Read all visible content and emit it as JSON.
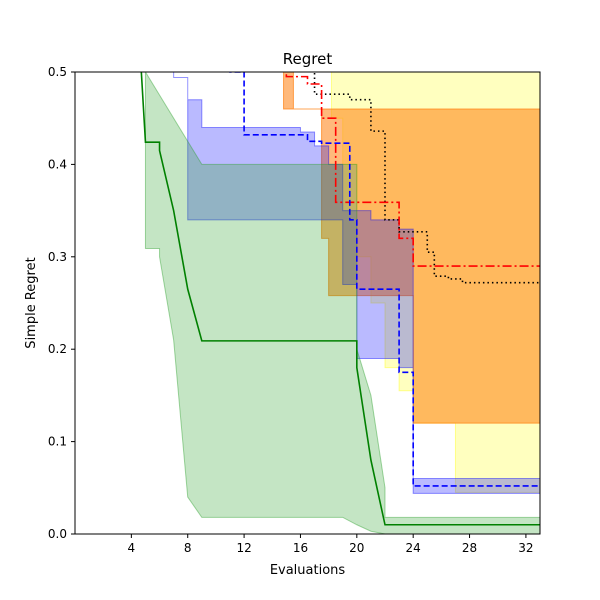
{
  "chart_data": {
    "type": "line",
    "title": "Regret",
    "xlabel": "Evaluations",
    "ylabel": "Simple Regret",
    "xlim": [
      0,
      33
    ],
    "ylim": [
      0,
      0.5
    ],
    "xticks": [
      4,
      8,
      12,
      16,
      20,
      24,
      28,
      32
    ],
    "yticks": [
      0.0,
      0.1,
      0.2,
      0.3,
      0.4,
      0.5
    ],
    "grid": false,
    "series": [
      {
        "color": "#000000",
        "dash": "dotted",
        "band_color": "#ffff00",
        "band_opacity": 0.25,
        "line": [
          [
            0,
            0.6
          ],
          [
            17,
            0.6
          ],
          [
            17,
            0.476
          ],
          [
            19.5,
            0.476
          ],
          [
            19.5,
            0.47
          ],
          [
            21,
            0.47
          ],
          [
            21,
            0.436
          ],
          [
            22,
            0.436
          ],
          [
            22,
            0.34
          ],
          [
            23,
            0.34
          ],
          [
            23,
            0.327
          ],
          [
            25,
            0.327
          ],
          [
            25,
            0.305
          ],
          [
            25.5,
            0.305
          ],
          [
            25.5,
            0.279
          ],
          [
            26.5,
            0.279
          ],
          [
            26.5,
            0.276
          ],
          [
            27.5,
            0.276
          ],
          [
            27.5,
            0.272
          ],
          [
            33,
            0.272
          ]
        ],
        "upper": [
          [
            0,
            0.6
          ],
          [
            33,
            0.6
          ]
        ],
        "lower": [
          [
            0,
            0.6
          ],
          [
            18.2,
            0.6
          ],
          [
            18.2,
            0.45
          ],
          [
            19,
            0.45
          ],
          [
            19,
            0.4
          ],
          [
            20,
            0.4
          ],
          [
            20,
            0.3
          ],
          [
            21,
            0.3
          ],
          [
            21,
            0.25
          ],
          [
            22,
            0.25
          ],
          [
            22,
            0.18
          ],
          [
            23,
            0.18
          ],
          [
            23,
            0.155
          ],
          [
            24,
            0.155
          ],
          [
            24,
            0.12
          ],
          [
            27,
            0.12
          ],
          [
            27,
            0.045
          ],
          [
            33,
            0.045
          ]
        ]
      },
      {
        "color": "#ff0000",
        "dash": "dashdot",
        "band_color": "#ff7f0e",
        "band_opacity": 0.55,
        "line": [
          [
            0,
            0.6
          ],
          [
            15,
            0.6
          ],
          [
            15,
            0.495
          ],
          [
            16.5,
            0.495
          ],
          [
            16.5,
            0.487
          ],
          [
            17.5,
            0.487
          ],
          [
            17.5,
            0.45
          ],
          [
            18.5,
            0.45
          ],
          [
            18.5,
            0.359
          ],
          [
            23,
            0.359
          ],
          [
            23,
            0.32
          ],
          [
            24,
            0.32
          ],
          [
            24,
            0.29
          ],
          [
            33,
            0.29
          ]
        ],
        "upper": [
          [
            0,
            0.6
          ],
          [
            14.8,
            0.6
          ],
          [
            14.8,
            0.46
          ],
          [
            33,
            0.46
          ]
        ],
        "lower": [
          [
            0,
            0.6
          ],
          [
            15.5,
            0.6
          ],
          [
            15.5,
            0.46
          ],
          [
            17.5,
            0.46
          ],
          [
            17.5,
            0.32
          ],
          [
            18,
            0.32
          ],
          [
            18,
            0.258
          ],
          [
            24,
            0.258
          ],
          [
            24,
            0.12
          ],
          [
            33,
            0.12
          ]
        ]
      },
      {
        "color": "#0000ff",
        "dash": "dashed",
        "band_color": "#0000ff",
        "band_opacity": 0.27,
        "line": [
          [
            0,
            0.6
          ],
          [
            11,
            0.6
          ],
          [
            11,
            0.5
          ],
          [
            12,
            0.5
          ],
          [
            12,
            0.432
          ],
          [
            16.5,
            0.432
          ],
          [
            16.5,
            0.425
          ],
          [
            17.5,
            0.425
          ],
          [
            17.5,
            0.423
          ],
          [
            19.5,
            0.423
          ],
          [
            19.5,
            0.34
          ],
          [
            20,
            0.34
          ],
          [
            20,
            0.265
          ],
          [
            23,
            0.265
          ],
          [
            23,
            0.175
          ],
          [
            24,
            0.175
          ],
          [
            24,
            0.052
          ],
          [
            33,
            0.052
          ]
        ],
        "upper": [
          [
            0,
            0.6
          ],
          [
            7,
            0.6
          ],
          [
            7,
            0.494
          ],
          [
            8,
            0.494
          ],
          [
            8,
            0.47
          ],
          [
            9,
            0.47
          ],
          [
            9,
            0.44
          ],
          [
            16,
            0.44
          ],
          [
            16,
            0.435
          ],
          [
            17,
            0.435
          ],
          [
            17,
            0.42
          ],
          [
            18,
            0.42
          ],
          [
            18,
            0.4
          ],
          [
            19,
            0.4
          ],
          [
            19,
            0.35
          ],
          [
            21,
            0.35
          ],
          [
            21,
            0.34
          ],
          [
            23,
            0.34
          ],
          [
            23,
            0.33
          ],
          [
            24,
            0.33
          ],
          [
            24,
            0.06
          ],
          [
            33,
            0.06
          ]
        ],
        "lower": [
          [
            0,
            0.6
          ],
          [
            7,
            0.6
          ],
          [
            7,
            0.494
          ],
          [
            8,
            0.494
          ],
          [
            8,
            0.34
          ],
          [
            19,
            0.34
          ],
          [
            19,
            0.27
          ],
          [
            20,
            0.27
          ],
          [
            20,
            0.19
          ],
          [
            23,
            0.19
          ],
          [
            23,
            0.18
          ],
          [
            24,
            0.18
          ],
          [
            24,
            0.044
          ],
          [
            33,
            0.044
          ]
        ]
      },
      {
        "color": "#008000",
        "dash": "solid",
        "band_color": "#2ca02c",
        "band_opacity": 0.28,
        "line": [
          [
            0,
            0.6
          ],
          [
            4.7,
            0.6
          ],
          [
            4.7,
            0.502
          ],
          [
            5,
            0.424
          ],
          [
            6,
            0.424
          ],
          [
            6,
            0.415
          ],
          [
            7,
            0.35
          ],
          [
            8,
            0.265
          ],
          [
            9,
            0.209
          ],
          [
            20,
            0.209
          ],
          [
            20,
            0.18
          ],
          [
            21,
            0.08
          ],
          [
            22,
            0.01
          ],
          [
            33,
            0.01
          ]
        ],
        "upper": [
          [
            0,
            0.6
          ],
          [
            4.5,
            0.6
          ],
          [
            5,
            0.5
          ],
          [
            9,
            0.4
          ],
          [
            20,
            0.4
          ],
          [
            20,
            0.2
          ],
          [
            21,
            0.15
          ],
          [
            22,
            0.05
          ],
          [
            22,
            0.018
          ],
          [
            33,
            0.018
          ]
        ],
        "lower": [
          [
            0,
            0.6
          ],
          [
            5,
            0.6
          ],
          [
            5,
            0.309
          ],
          [
            6,
            0.309
          ],
          [
            6,
            0.3
          ],
          [
            7,
            0.21
          ],
          [
            8,
            0.04
          ],
          [
            9,
            0.018
          ],
          [
            19,
            0.018
          ],
          [
            20,
            0.01
          ],
          [
            21,
            0.003
          ],
          [
            22,
            0.0
          ],
          [
            33,
            0.0
          ]
        ]
      }
    ]
  }
}
